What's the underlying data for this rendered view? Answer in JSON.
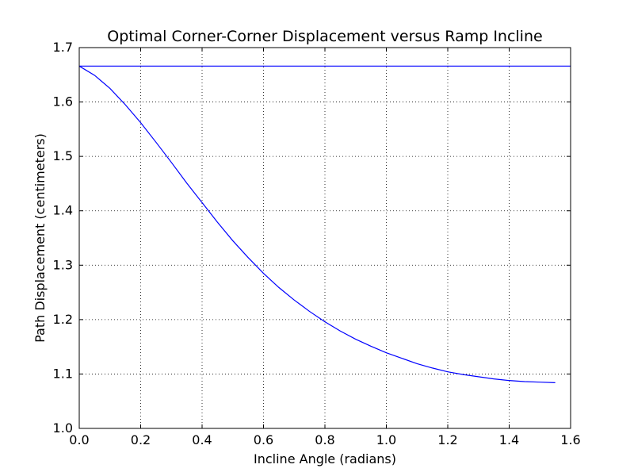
{
  "chart_data": {
    "type": "line",
    "title": "Optimal Corner-Corner Displacement versus Ramp Incline",
    "xlabel": "Incline Angle (radians)",
    "ylabel": "Path Displacement (centimeters)",
    "xlim": [
      0.0,
      1.6
    ],
    "ylim": [
      1.0,
      1.7
    ],
    "xticks": [
      "0.0",
      "0.2",
      "0.4",
      "0.6",
      "0.8",
      "1.0",
      "1.2",
      "1.4",
      "1.6"
    ],
    "yticks": [
      "1.0",
      "1.1",
      "1.2",
      "1.3",
      "1.4",
      "1.5",
      "1.6",
      "1.7"
    ],
    "grid": true,
    "line_color": "#0000ff",
    "series": [
      {
        "x": [
          0.0,
          1.6
        ],
        "y": [
          1.666,
          1.666
        ]
      },
      {
        "x": [
          0.0,
          0.05,
          0.1,
          0.15,
          0.2,
          0.25,
          0.3,
          0.35,
          0.4,
          0.45,
          0.5,
          0.55,
          0.6,
          0.65,
          0.7,
          0.75,
          0.8,
          0.85,
          0.9,
          0.95,
          1.0,
          1.05,
          1.1,
          1.15,
          1.2,
          1.25,
          1.3,
          1.35,
          1.4,
          1.45,
          1.5,
          1.55
        ],
        "y": [
          1.666,
          1.649,
          1.625,
          1.595,
          1.562,
          1.526,
          1.489,
          1.451,
          1.415,
          1.379,
          1.345,
          1.314,
          1.285,
          1.259,
          1.236,
          1.215,
          1.196,
          1.179,
          1.164,
          1.151,
          1.139,
          1.129,
          1.119,
          1.111,
          1.104,
          1.099,
          1.095,
          1.091,
          1.088,
          1.086,
          1.085,
          1.084
        ]
      }
    ]
  }
}
